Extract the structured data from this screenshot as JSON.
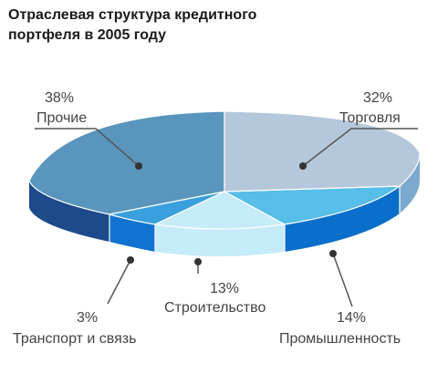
{
  "title_lines": [
    "Отраслевая структура кредитного",
    "портфеля в 2005 году"
  ],
  "chart_data": {
    "type": "pie",
    "title": "Отраслевая структура кредитного портфеля в 2005 году",
    "slices": [
      {
        "id": "trade",
        "name": "Торговля",
        "value": 32,
        "label": "32%",
        "color": "#b5c7da"
      },
      {
        "id": "industry",
        "name": "Промышленность",
        "value": 14,
        "label": "14%",
        "color": "#57bde9"
      },
      {
        "id": "construct",
        "name": "Строительство",
        "value": 13,
        "label": "13%",
        "color": "#c6ebf9"
      },
      {
        "id": "transport",
        "name": "Транспорт и связь",
        "value": 3,
        "label": "3%",
        "color": "#3aa0dd"
      },
      {
        "id": "other",
        "name": "Прочие",
        "value": 38,
        "label": "38%",
        "color": "#5a95bd"
      }
    ]
  }
}
